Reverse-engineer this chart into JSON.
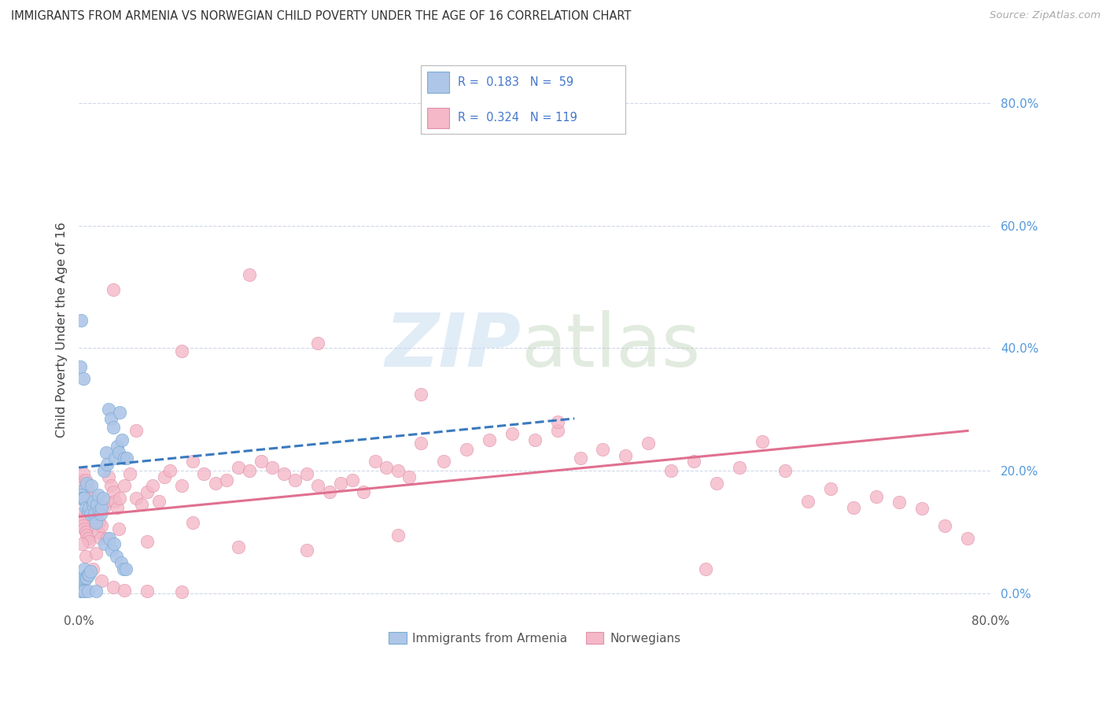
{
  "title": "IMMIGRANTS FROM ARMENIA VS NORWEGIAN CHILD POVERTY UNDER THE AGE OF 16 CORRELATION CHART",
  "source": "Source: ZipAtlas.com",
  "ylabel": "Child Poverty Under the Age of 16",
  "ytick_labels": [
    "0.0%",
    "20.0%",
    "40.0%",
    "60.0%",
    "80.0%"
  ],
  "ytick_values": [
    0.0,
    0.2,
    0.4,
    0.6,
    0.8
  ],
  "xlim": [
    0.0,
    0.8
  ],
  "ylim": [
    -0.02,
    0.88
  ],
  "background_color": "#ffffff",
  "grid_color": "#d0d8e8",
  "blue_color": "#aec6e8",
  "blue_edge": "#7aadd4",
  "blue_line": "#3a7abf",
  "pink_color": "#f4b8c8",
  "pink_edge": "#e090aa",
  "pink_line": "#e07090",
  "scatter_size": 140,
  "legend_text_color": "#4477cc",
  "legend_label_color": "#333333",
  "blue_trend": [
    0.0,
    0.205,
    0.435,
    0.285
  ],
  "pink_trend": [
    0.0,
    0.125,
    0.78,
    0.265
  ],
  "blue_x": [
    0.001,
    0.001,
    0.002,
    0.002,
    0.002,
    0.003,
    0.003,
    0.004,
    0.004,
    0.004,
    0.005,
    0.005,
    0.006,
    0.006,
    0.007,
    0.007,
    0.008,
    0.008,
    0.009,
    0.009,
    0.01,
    0.01,
    0.011,
    0.012,
    0.013,
    0.014,
    0.015,
    0.016,
    0.017,
    0.018,
    0.019,
    0.02,
    0.021,
    0.022,
    0.023,
    0.024,
    0.025,
    0.026,
    0.027,
    0.028,
    0.029,
    0.03,
    0.031,
    0.032,
    0.033,
    0.034,
    0.035,
    0.036,
    0.037,
    0.038,
    0.039,
    0.04,
    0.041,
    0.042,
    0.002,
    0.003,
    0.005,
    0.008,
    0.015
  ],
  "blue_y": [
    0.37,
    0.165,
    0.445,
    0.16,
    0.022,
    0.155,
    0.022,
    0.35,
    0.155,
    0.025,
    0.04,
    0.155,
    0.14,
    0.025,
    0.18,
    0.025,
    0.135,
    0.03,
    0.14,
    0.03,
    0.13,
    0.035,
    0.175,
    0.145,
    0.15,
    0.13,
    0.115,
    0.145,
    0.16,
    0.135,
    0.13,
    0.14,
    0.155,
    0.2,
    0.08,
    0.23,
    0.21,
    0.3,
    0.09,
    0.285,
    0.07,
    0.27,
    0.08,
    0.22,
    0.06,
    0.24,
    0.23,
    0.295,
    0.05,
    0.25,
    0.04,
    0.22,
    0.04,
    0.22,
    0.003,
    0.003,
    0.003,
    0.003,
    0.003
  ],
  "pink_x": [
    0.001,
    0.001,
    0.002,
    0.002,
    0.003,
    0.003,
    0.004,
    0.004,
    0.005,
    0.005,
    0.006,
    0.006,
    0.007,
    0.007,
    0.008,
    0.008,
    0.009,
    0.009,
    0.01,
    0.011,
    0.012,
    0.013,
    0.014,
    0.015,
    0.016,
    0.017,
    0.018,
    0.019,
    0.02,
    0.022,
    0.024,
    0.026,
    0.028,
    0.03,
    0.032,
    0.034,
    0.036,
    0.04,
    0.045,
    0.05,
    0.055,
    0.06,
    0.065,
    0.07,
    0.075,
    0.08,
    0.09,
    0.1,
    0.11,
    0.12,
    0.13,
    0.14,
    0.15,
    0.16,
    0.17,
    0.18,
    0.19,
    0.2,
    0.21,
    0.22,
    0.23,
    0.24,
    0.25,
    0.26,
    0.27,
    0.28,
    0.29,
    0.3,
    0.32,
    0.34,
    0.36,
    0.38,
    0.4,
    0.42,
    0.44,
    0.46,
    0.48,
    0.5,
    0.52,
    0.54,
    0.56,
    0.58,
    0.6,
    0.62,
    0.64,
    0.66,
    0.68,
    0.7,
    0.72,
    0.74,
    0.76,
    0.78,
    0.003,
    0.006,
    0.015,
    0.025,
    0.035,
    0.06,
    0.1,
    0.14,
    0.2,
    0.28,
    0.03,
    0.05,
    0.09,
    0.15,
    0.21,
    0.3,
    0.42,
    0.55,
    0.003,
    0.005,
    0.008,
    0.012,
    0.02,
    0.03,
    0.04,
    0.06,
    0.09
  ],
  "pink_y": [
    0.18,
    0.155,
    0.185,
    0.13,
    0.165,
    0.12,
    0.195,
    0.11,
    0.16,
    0.105,
    0.185,
    0.1,
    0.155,
    0.095,
    0.175,
    0.09,
    0.135,
    0.085,
    0.15,
    0.14,
    0.155,
    0.13,
    0.12,
    0.11,
    0.13,
    0.1,
    0.115,
    0.09,
    0.11,
    0.14,
    0.15,
    0.19,
    0.175,
    0.165,
    0.15,
    0.14,
    0.155,
    0.175,
    0.195,
    0.155,
    0.145,
    0.165,
    0.175,
    0.15,
    0.19,
    0.2,
    0.175,
    0.215,
    0.195,
    0.18,
    0.185,
    0.205,
    0.2,
    0.215,
    0.205,
    0.195,
    0.185,
    0.195,
    0.175,
    0.165,
    0.18,
    0.185,
    0.165,
    0.215,
    0.205,
    0.2,
    0.19,
    0.245,
    0.215,
    0.235,
    0.25,
    0.26,
    0.25,
    0.265,
    0.22,
    0.235,
    0.225,
    0.245,
    0.2,
    0.215,
    0.18,
    0.205,
    0.248,
    0.2,
    0.15,
    0.17,
    0.14,
    0.158,
    0.148,
    0.138,
    0.11,
    0.09,
    0.08,
    0.06,
    0.065,
    0.09,
    0.105,
    0.085,
    0.115,
    0.075,
    0.07,
    0.095,
    0.495,
    0.265,
    0.395,
    0.52,
    0.408,
    0.325,
    0.28,
    0.04,
    0.01,
    0.02,
    0.03,
    0.04,
    0.02,
    0.01,
    0.005,
    0.003,
    0.002
  ]
}
